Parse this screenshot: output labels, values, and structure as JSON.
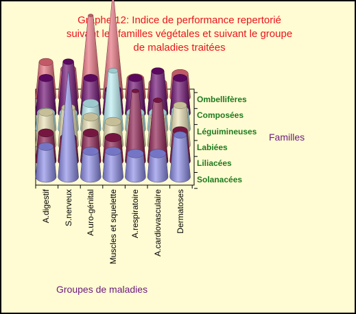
{
  "title_lines": [
    "Graphe 12: Indice de performance repertorié",
    "suivant les familles végétales et suivant le groupe",
    "de maladies traitées"
  ],
  "chart_data": {
    "type": "3d-cone",
    "title": "Graphe 12: Indice de performance repertorié suivant les familles végétales et suivant le groupe de maladies traitées",
    "xlabel": "Groupes de maladies",
    "zlabel": "Familles",
    "categories": [
      "A.digestif",
      "S.nerveux",
      "A.uro-génital",
      "Muscles et squelette",
      "A.respiratoire",
      "A.cardiovasculaire",
      "Dermatoses"
    ],
    "series": [
      {
        "name": "Ombellifères",
        "color": "#e36a78",
        "values": [
          1.5,
          1.2,
          3.5,
          4.2,
          0.8,
          0.6,
          1.0
        ]
      },
      {
        "name": "Composées",
        "color": "#6b0a6e",
        "values": [
          1.5,
          2.2,
          1.5,
          1.0,
          1.5,
          1.8,
          1.5
        ]
      },
      {
        "name": "Léguimineuses",
        "color": "#b9eef2",
        "values": [
          0.7,
          0.7,
          1.1,
          2.5,
          0.7,
          0.7,
          0.8
        ]
      },
      {
        "name": "Labiées",
        "color": "#e9e0b2",
        "values": [
          1.4,
          1.6,
          1.2,
          1.0,
          1.2,
          1.2,
          1.7
        ]
      },
      {
        "name": "Liliacées",
        "color": "#8a1a4c",
        "values": [
          1.2,
          1.0,
          1.2,
          1.0,
          3.0,
          2.6,
          1.3
        ]
      },
      {
        "name": "Solanacées",
        "color": "#8a8ae8",
        "values": [
          1.3,
          4.5,
          1.1,
          1.1,
          1.0,
          1.0,
          1.8
        ]
      }
    ]
  },
  "families_title": "Familles",
  "groups_title": "Groupes de maladies"
}
